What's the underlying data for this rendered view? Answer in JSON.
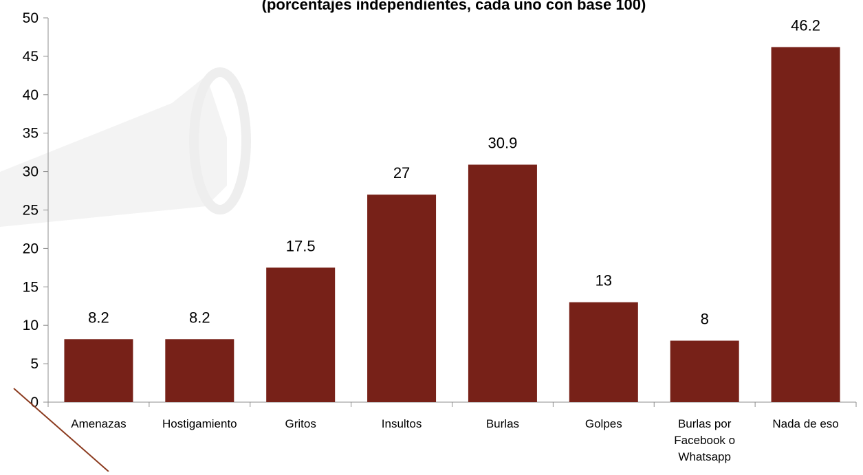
{
  "chart_data": {
    "type": "bar",
    "title": "(porcentajes independientes, cada uno con base 100)",
    "categories": [
      [
        "Amenazas"
      ],
      [
        "Hostigamiento"
      ],
      [
        "Gritos"
      ],
      [
        "Insultos"
      ],
      [
        "Burlas"
      ],
      [
        "Golpes"
      ],
      [
        "Burlas por",
        "Facebook o",
        "Whatsapp"
      ],
      [
        "Nada de eso"
      ]
    ],
    "values": [
      8.2,
      8.2,
      17.5,
      27,
      30.9,
      13,
      8,
      46.2
    ],
    "data_labels": [
      "8.2",
      "8.2",
      "17.5",
      "27",
      "30.9",
      "13",
      "8",
      "46.2"
    ],
    "ylim": [
      0,
      50
    ],
    "yticks": [
      0,
      5,
      10,
      15,
      20,
      25,
      30,
      35,
      40,
      45,
      50
    ],
    "grid": false,
    "legend": "none",
    "colors": {
      "bar": "#772118",
      "axis": "#8c8c8c",
      "decor_line": "#8b3a1e"
    }
  }
}
